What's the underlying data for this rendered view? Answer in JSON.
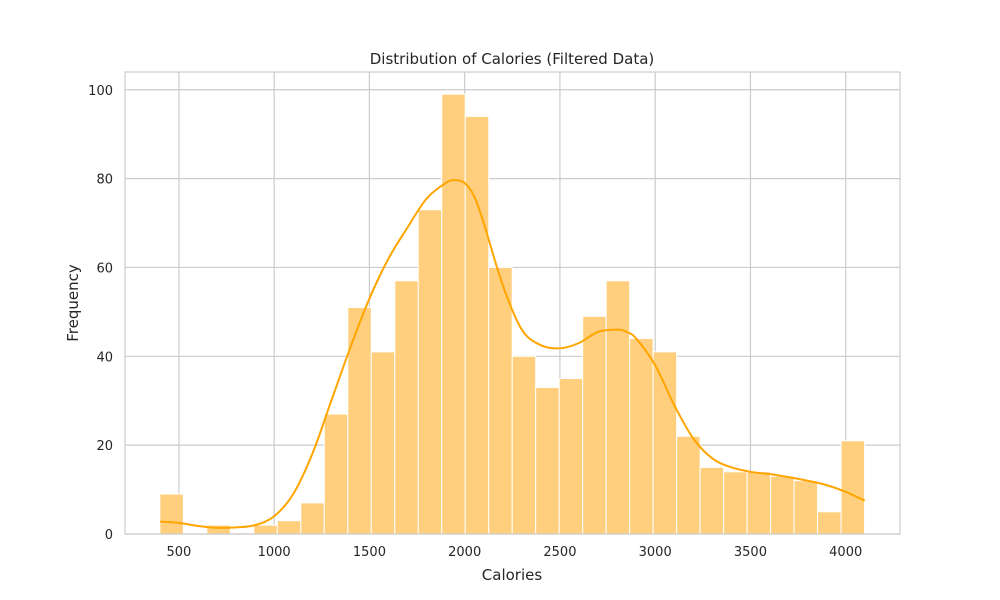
{
  "chart_data": {
    "type": "bar",
    "title": "Distribution of Calories (Filtered Data)",
    "xlabel": "Calories",
    "ylabel": "Frequency",
    "xlim": [
      217,
      4285
    ],
    "ylim": [
      0,
      104
    ],
    "xticks": [
      500,
      1000,
      1500,
      2000,
      2500,
      3000,
      3500,
      4000
    ],
    "yticks": [
      0,
      20,
      40,
      60,
      80,
      100
    ],
    "grid": true,
    "bin_start": 400,
    "bin_width": 123.3,
    "values": [
      9,
      0,
      2,
      0,
      2,
      3,
      7,
      27,
      51,
      41,
      57,
      73,
      99,
      94,
      60,
      40,
      33,
      35,
      49,
      57,
      44,
      41,
      22,
      15,
      14,
      14,
      13,
      12,
      5,
      21
    ],
    "kde": {
      "x": [
        400,
        500,
        600,
        700,
        800,
        900,
        1000,
        1100,
        1200,
        1300,
        1400,
        1500,
        1600,
        1700,
        1800,
        1900,
        1950,
        2000,
        2050,
        2100,
        2200,
        2300,
        2400,
        2500,
        2600,
        2700,
        2800,
        2850,
        2900,
        3000,
        3100,
        3200,
        3300,
        3400,
        3500,
        3600,
        3700,
        3800,
        3900,
        4000,
        4100
      ],
      "y": [
        2.8,
        2.5,
        1.8,
        1.4,
        1.5,
        2.0,
        4.0,
        9.0,
        18.0,
        30.0,
        42.0,
        53.0,
        62.0,
        69.0,
        75.5,
        79.0,
        79.7,
        79.0,
        76.0,
        70.0,
        56.0,
        46.0,
        42.5,
        41.8,
        43.0,
        45.5,
        46.0,
        45.5,
        44.0,
        38.0,
        29.0,
        21.5,
        17.0,
        15.0,
        14.0,
        13.5,
        12.8,
        12.0,
        11.0,
        9.5,
        7.5
      ]
    },
    "colors": {
      "bar_fill": "#FFCF7E",
      "bar_edge": "#FFFFFF",
      "kde_line": "#FFA500",
      "grid": "#CCCCCC",
      "spine": "#CCCCCC"
    }
  }
}
